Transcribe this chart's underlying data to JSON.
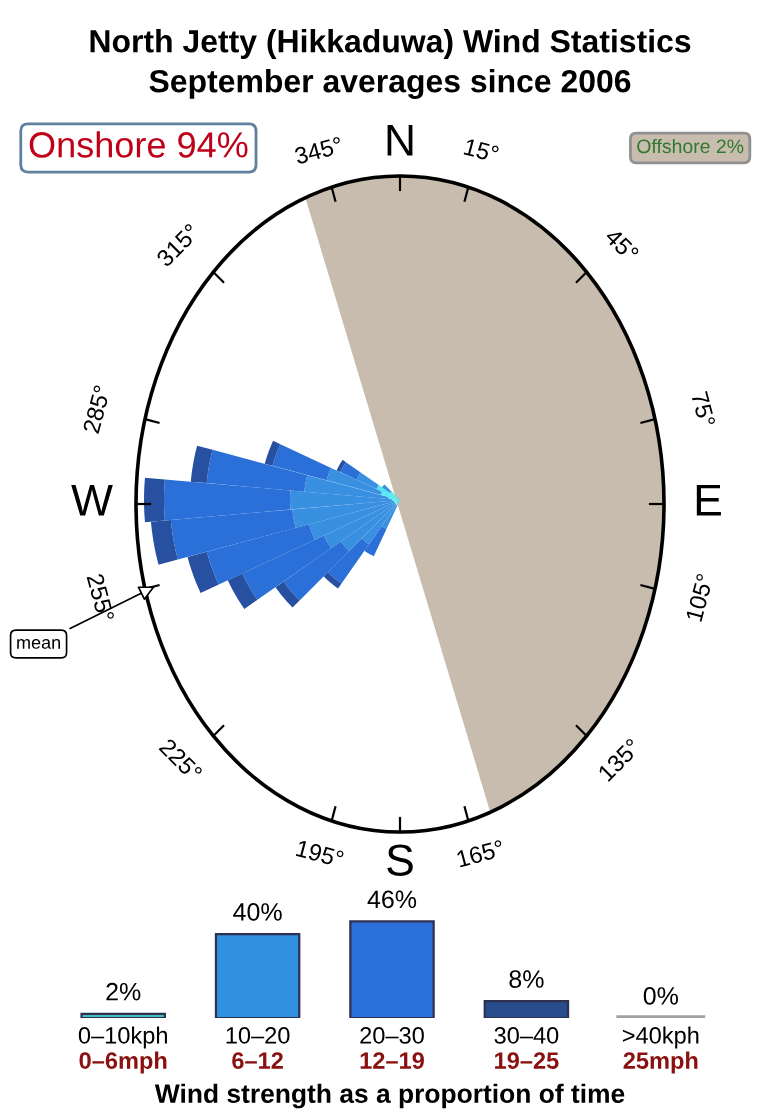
{
  "chart_data": [
    {
      "type": "other",
      "title": "North Jetty (Hikkaduwa) Wind Statistics",
      "subtitle": "September averages since 2006",
      "annotations": [
        "Onshore 94%",
        "Offshore 2%",
        "mean",
        "N",
        "15°",
        "45°",
        "75°",
        "E",
        "105°",
        "135°",
        "165°",
        "S",
        "195°",
        "225°",
        "255°",
        "W",
        "285°",
        "315°",
        "345°"
      ]
    },
    {
      "type": "bar",
      "categories": [
        "0–10kph\n0–6mph",
        "10–20\n6–12",
        "20–30\n12–19",
        "30–40\n19–25",
        ">40kph\n25mph"
      ],
      "values": [
        2,
        40,
        46,
        8,
        0
      ],
      "colors": [
        "#40c0c0",
        "#3090e0",
        "#2a70d8",
        "#284c8c",
        "#a0a0a0"
      ],
      "value_labels": [
        "2%",
        "40%",
        "46%",
        "8%",
        "0%"
      ],
      "xlabel": "Wind strength as a proportion of time"
    }
  ]
}
